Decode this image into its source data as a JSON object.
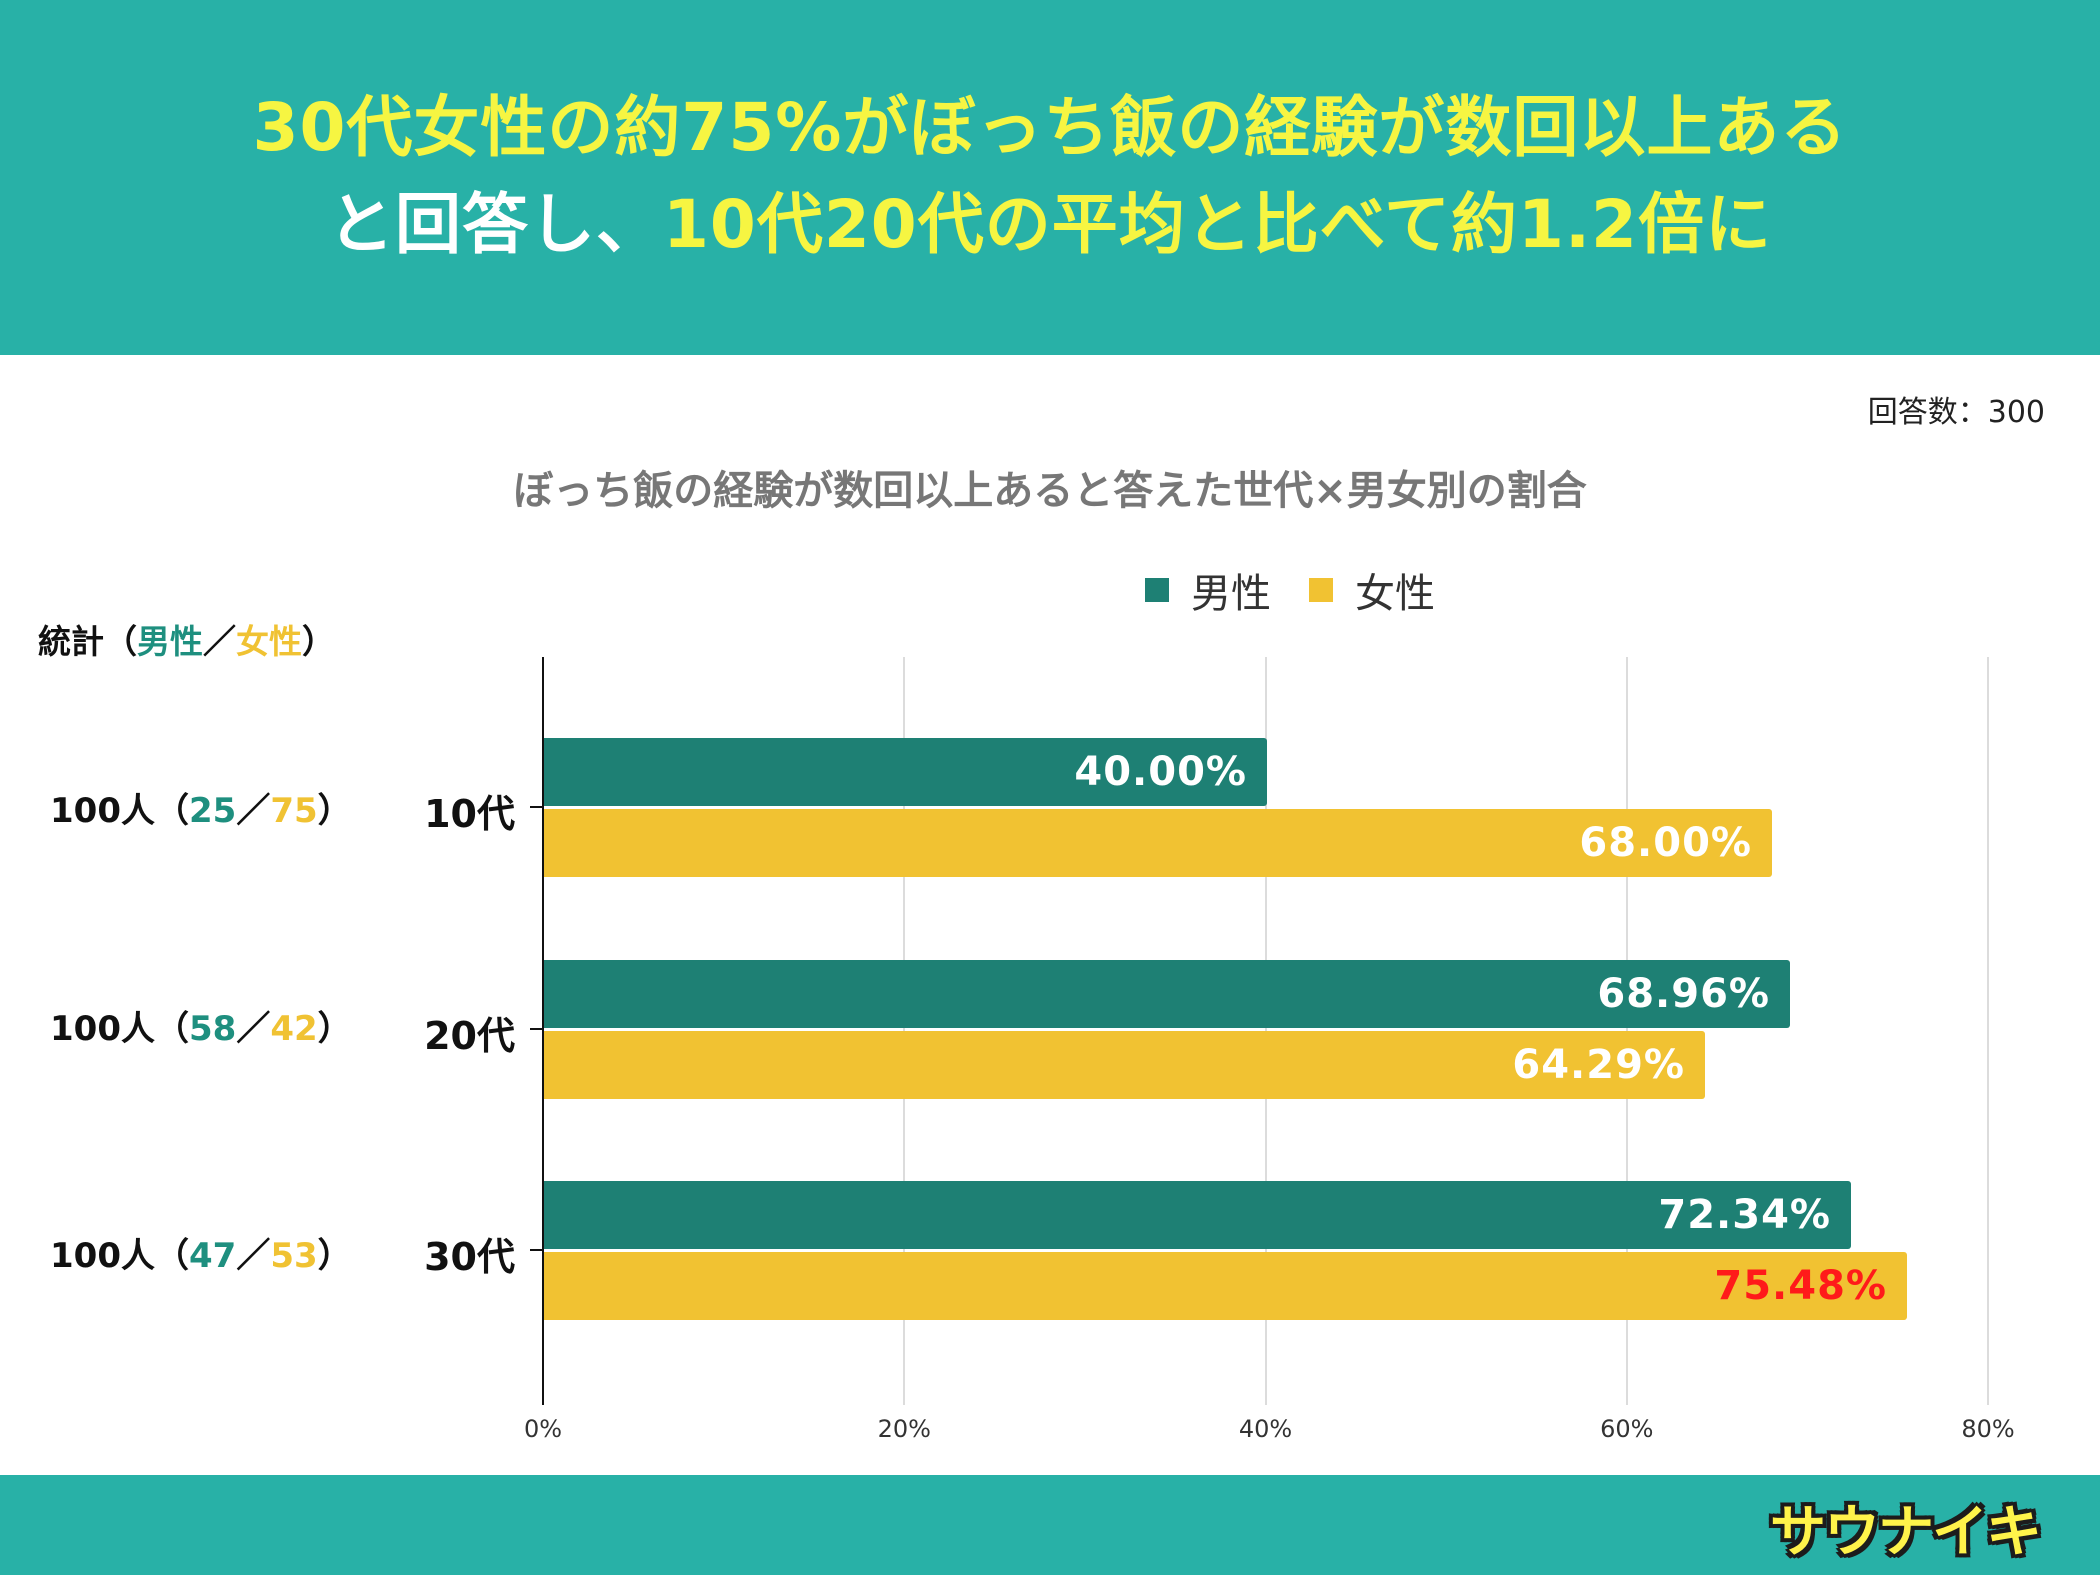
{
  "header": {
    "line1": "30代女性の約75%がぼっち飯の経験が数回以上ある",
    "line2_white": "と回答し、",
    "line2_yellow": "10代20代の平均と比べて約1.2倍に"
  },
  "respondents_label": "回答数：300",
  "stats": {
    "header_prefix": "統計（",
    "header_male": "男性",
    "header_sep": "／",
    "header_female": "女性",
    "header_suffix": "）",
    "rows": [
      {
        "total": "100人（",
        "male": "25",
        "sep": "／",
        "female": "75",
        "close": "）"
      },
      {
        "total": "100人（",
        "male": "58",
        "sep": "／",
        "female": "42",
        "close": "）"
      },
      {
        "total": "100人（",
        "male": "47",
        "sep": "／",
        "female": "53",
        "close": "）"
      }
    ]
  },
  "colors": {
    "male": "#1e8074",
    "female": "#f1c232",
    "highlight": "#ff1a1a"
  },
  "chart_data": {
    "type": "bar",
    "orientation": "horizontal",
    "title": "ぼっち飯の経験が数回以上あると答えた世代×男女別の割合",
    "categories": [
      "10代",
      "20代",
      "30代"
    ],
    "series": [
      {
        "name": "男性",
        "values": [
          40.0,
          68.96,
          72.34
        ],
        "labels": [
          "40.00%",
          "68.96%",
          "72.34%"
        ]
      },
      {
        "name": "女性",
        "values": [
          68.0,
          64.29,
          75.48
        ],
        "labels": [
          "68.00%",
          "64.29%",
          "75.48%"
        ]
      }
    ],
    "xlim": [
      0,
      80
    ],
    "xticks": [
      "0%",
      "20%",
      "40%",
      "60%",
      "80%"
    ],
    "grid": true,
    "legend_position": "top"
  },
  "footer": {
    "logo_text": "サウナイキ"
  }
}
